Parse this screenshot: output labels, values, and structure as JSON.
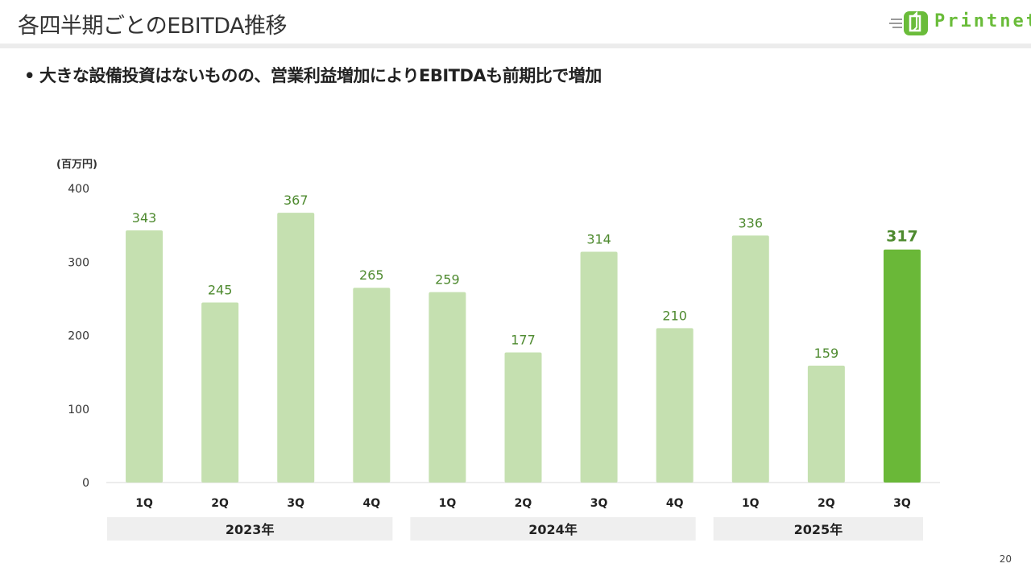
{
  "page": {
    "title": "各四半期ごとのEBITDA推移",
    "subtitle": "大きな設備投資はないものの、営業利益増加によりEBITDAも前期比で増加",
    "page_number": "20"
  },
  "logo": {
    "text": "Printnet",
    "icon": "printnet-logo-icon",
    "color": "#6abc3a"
  },
  "chart_data": {
    "type": "bar",
    "unit_label": "(百万円)",
    "categories": [
      "1Q",
      "2Q",
      "3Q",
      "4Q",
      "1Q",
      "2Q",
      "3Q",
      "4Q",
      "1Q",
      "2Q",
      "3Q"
    ],
    "values": [
      343,
      245,
      367,
      265,
      259,
      177,
      314,
      210,
      336,
      159,
      317
    ],
    "year_groups": [
      {
        "label": "2023年",
        "span": 4
      },
      {
        "label": "2024年",
        "span": 4
      },
      {
        "label": "2025年",
        "span": 3
      }
    ],
    "ylim": [
      0,
      400
    ],
    "yticks": [
      0,
      100,
      200,
      300,
      400
    ],
    "highlight_index": 10,
    "colors": {
      "bar": "#c5e0b0",
      "highlight": "#6ab838",
      "value_label": "#4e8a2f"
    },
    "grid": false
  }
}
